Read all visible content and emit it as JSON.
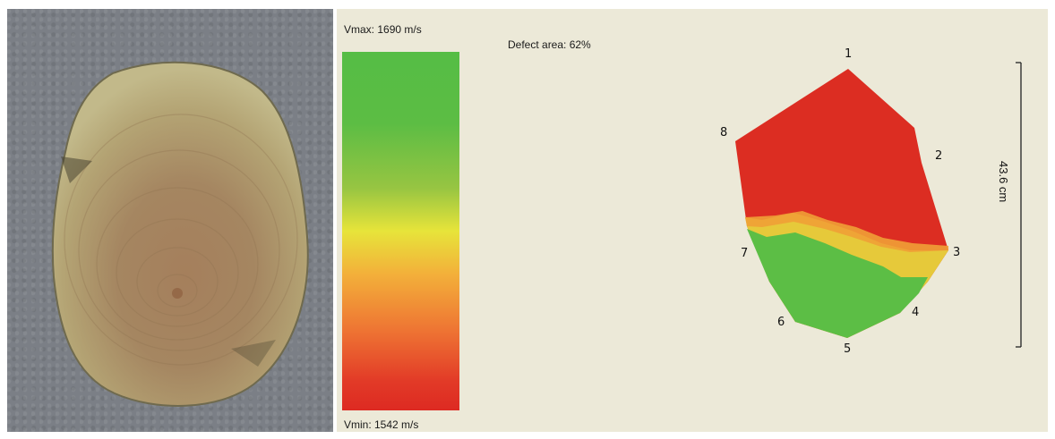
{
  "scale": {
    "vmax_label": "Vmax: 1690 m/s",
    "vmin_label": "Vmin: 1542 m/s"
  },
  "defect_area_label": "Defect area: 62%",
  "nodes": [
    "1",
    "2",
    "3",
    "4",
    "5",
    "6",
    "7",
    "8"
  ],
  "diameter_label": "43.6 cm",
  "colors": {
    "sound_wood": "#5cbe45",
    "transition": "#e9d83a",
    "defect": "#dc2d22",
    "panel_background": "#ece9d8"
  }
}
